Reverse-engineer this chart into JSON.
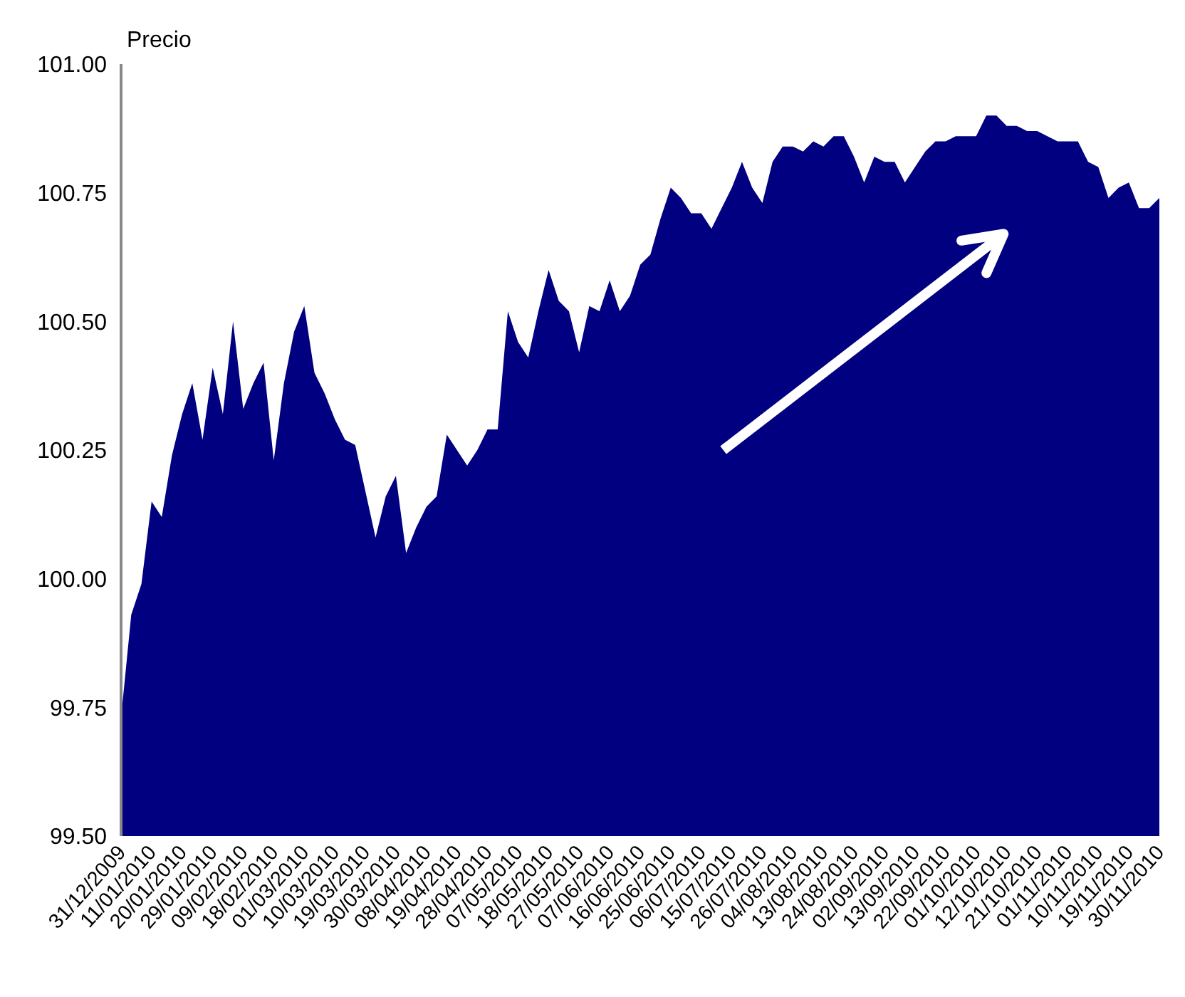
{
  "chart_data": {
    "type": "area",
    "ylabel": "Precio",
    "categories": [
      "31/12/2009",
      null,
      null,
      "11/01/2010",
      null,
      null,
      "20/01/2010",
      null,
      null,
      "29/01/2010",
      null,
      null,
      "09/02/2010",
      null,
      null,
      "18/02/2010",
      null,
      null,
      "01/03/2010",
      null,
      null,
      "10/03/2010",
      null,
      null,
      "19/03/2010",
      null,
      null,
      "30/03/2010",
      null,
      null,
      "08/04/2010",
      null,
      null,
      "19/04/2010",
      null,
      null,
      "28/04/2010",
      null,
      null,
      "07/05/2010",
      null,
      null,
      "18/05/2010",
      null,
      null,
      "27/05/2010",
      null,
      null,
      "07/06/2010",
      null,
      null,
      "16/06/2010",
      null,
      null,
      "25/06/2010",
      null,
      null,
      "06/07/2010",
      null,
      null,
      "15/07/2010",
      null,
      null,
      "26/07/2010",
      null,
      null,
      "04/08/2010",
      null,
      null,
      "13/08/2010",
      null,
      null,
      "24/08/2010",
      null,
      null,
      "02/09/2010",
      null,
      null,
      "13/09/2010",
      null,
      null,
      "22/09/2010",
      null,
      null,
      "01/10/2010",
      null,
      null,
      "12/10/2010",
      null,
      null,
      "21/10/2010",
      null,
      null,
      "01/11/2010",
      null,
      null,
      "10/11/2010",
      null,
      null,
      "19/11/2010",
      null,
      null,
      "30/11/2010"
    ],
    "series": [
      {
        "color": "#000080",
        "values": [
          99.73,
          99.93,
          99.99,
          100.15,
          100.12,
          100.24,
          100.32,
          100.38,
          100.27,
          100.41,
          100.32,
          100.5,
          100.33,
          100.38,
          100.42,
          100.23,
          100.38,
          100.48,
          100.53,
          100.4,
          100.36,
          100.31,
          100.27,
          100.26,
          100.17,
          100.08,
          100.16,
          100.2,
          100.05,
          100.1,
          100.14,
          100.16,
          100.28,
          100.25,
          100.22,
          100.25,
          100.29,
          100.29,
          100.52,
          100.46,
          100.43,
          100.52,
          100.6,
          100.54,
          100.52,
          100.44,
          100.53,
          100.52,
          100.58,
          100.52,
          100.55,
          100.61,
          100.63,
          100.7,
          100.76,
          100.74,
          100.71,
          100.71,
          100.68,
          100.72,
          100.76,
          100.81,
          100.76,
          100.73,
          100.81,
          100.84,
          100.84,
          100.83,
          100.85,
          100.84,
          100.86,
          100.86,
          100.82,
          100.77,
          100.82,
          100.81,
          100.81,
          100.77,
          100.8,
          100.83,
          100.85,
          100.85,
          100.86,
          100.86,
          100.86,
          100.9,
          100.9,
          100.88,
          100.88,
          100.87,
          100.87,
          100.86,
          100.85,
          100.85,
          100.85,
          100.81,
          100.8,
          100.74,
          100.76,
          100.77,
          100.72,
          100.72,
          100.74
        ]
      }
    ],
    "ylim": [
      99.5,
      101
    ],
    "yticks": [
      {
        "value": 99.5,
        "label": "99.50"
      },
      {
        "value": 99.75,
        "label": "99.75"
      },
      {
        "value": 100,
        "label": "100.00"
      },
      {
        "value": 100.25,
        "label": "100.25"
      },
      {
        "value": 100.5,
        "label": "100.50"
      },
      {
        "value": 100.75,
        "label": "100.75"
      },
      {
        "value": 101,
        "label": "101.00"
      }
    ],
    "grid": false
  }
}
